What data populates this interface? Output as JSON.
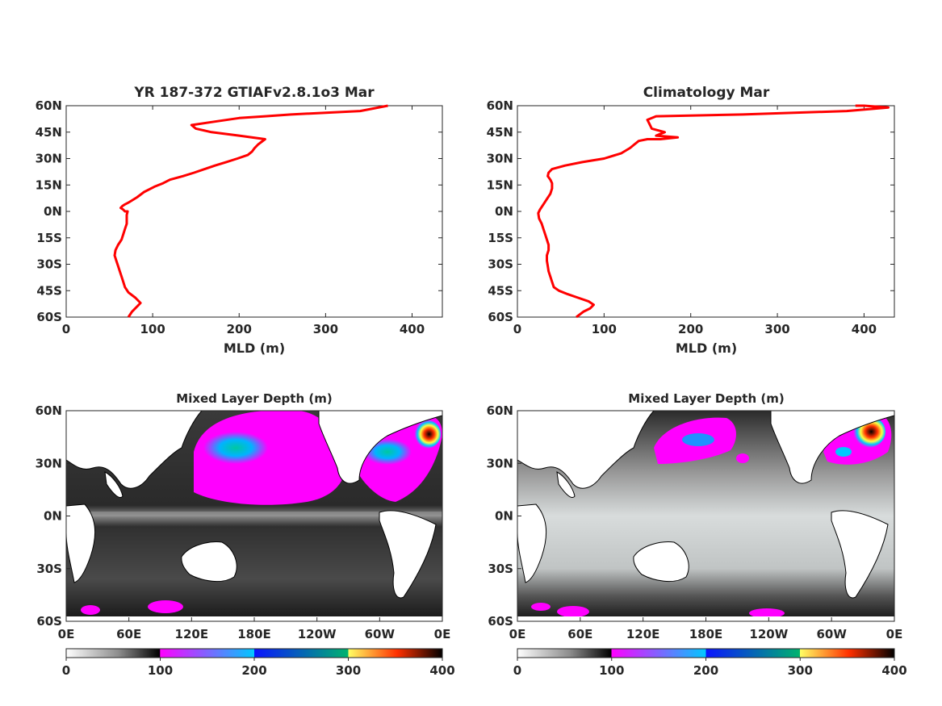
{
  "chart_data": [
    {
      "type": "line",
      "title": "YR 187-372 GTIAFv2.8.1o3 Mar",
      "xlabel": "MLD (m)",
      "ylabel": "",
      "xlim": [
        0,
        435
      ],
      "ylim": [
        -60,
        60
      ],
      "xticks": [
        "0",
        "100",
        "200",
        "300",
        "400"
      ],
      "yticks": [
        "60N",
        "45N",
        "30N",
        "15N",
        "0N",
        "15S",
        "30S",
        "45S",
        "60S"
      ],
      "grid": false,
      "color": "#ff0000",
      "series": [
        {
          "x": [
            72,
            76,
            82,
            86,
            80,
            72,
            68,
            66,
            64,
            62,
            60,
            58,
            56,
            57,
            60,
            64,
            66,
            68,
            70,
            70,
            70,
            71,
            68,
            66,
            63,
            65,
            68,
            72,
            82,
            90,
            102,
            112,
            120,
            135,
            148,
            160,
            172,
            185,
            198,
            210,
            215,
            218,
            222,
            230,
            200,
            168,
            150,
            145,
            172,
            200,
            230,
            260,
            300,
            340,
            372
          ],
          "y": [
            -60,
            -57,
            -54,
            -52,
            -49,
            -46,
            -43,
            -40,
            -37,
            -34,
            -31,
            -28,
            -25,
            -22,
            -19,
            -16,
            -13,
            -10,
            -7,
            -4,
            -2,
            0,
            0,
            1,
            2,
            3,
            4,
            5,
            8,
            11,
            14,
            16,
            18,
            20,
            22,
            24,
            26,
            28,
            30,
            32,
            34,
            36,
            38,
            41,
            43,
            45,
            47,
            49,
            51,
            53,
            54,
            55,
            56,
            57,
            60
          ]
        }
      ]
    },
    {
      "type": "line",
      "title": "Climatology Mar",
      "xlabel": "MLD (m)",
      "ylabel": "",
      "xlim": [
        0,
        435
      ],
      "ylim": [
        -60,
        60
      ],
      "xticks": [
        "0",
        "100",
        "200",
        "300",
        "400"
      ],
      "yticks": [
        "60N",
        "45N",
        "30N",
        "15N",
        "0N",
        "15S",
        "30S",
        "45S",
        "60S"
      ],
      "grid": false,
      "color": "#ff0000",
      "series": [
        {
          "x": [
            68,
            76,
            84,
            88,
            82,
            70,
            58,
            48,
            42,
            40,
            38,
            36,
            35,
            34,
            34,
            36,
            36,
            34,
            32,
            30,
            28,
            25,
            24,
            26,
            30,
            34,
            38,
            40,
            40,
            38,
            35,
            36,
            40,
            55,
            75,
            100,
            120,
            130,
            135,
            140,
            150,
            165,
            185,
            160,
            170,
            155,
            152,
            150,
            160,
            260,
            380,
            428,
            400,
            390
          ],
          "y": [
            -60,
            -57,
            -55,
            -53,
            -51,
            -49,
            -47,
            -45,
            -43,
            -40,
            -37,
            -34,
            -31,
            -28,
            -25,
            -22,
            -19,
            -16,
            -13,
            -10,
            -7,
            -4,
            -1,
            1,
            4,
            7,
            10,
            13,
            16,
            18,
            20,
            22,
            24,
            26,
            28,
            30,
            33,
            36,
            38,
            40,
            41,
            41,
            42,
            43,
            45,
            47,
            50,
            52,
            54,
            55,
            57,
            59,
            60,
            60
          ]
        }
      ]
    },
    {
      "type": "heatmap",
      "title": "Mixed Layer Depth (m)",
      "xticks": [
        "0E",
        "60E",
        "120E",
        "180E",
        "120W",
        "60W",
        "0E"
      ],
      "yticks": [
        "60N",
        "30N",
        "0N",
        "30S",
        "60S"
      ],
      "colorbar_ticks": [
        "0",
        "100",
        "200",
        "300",
        "400"
      ],
      "colorbar_range": [
        0,
        400
      ],
      "colormap": [
        "#ffffff",
        "#4a4a4a",
        "#000000",
        "#ff00ff",
        "#00c8ff",
        "#0000c8",
        "#00b400",
        "#ffff00",
        "#ff2000",
        "#000000"
      ]
    },
    {
      "type": "heatmap",
      "title": "Mixed Layer Depth (m)",
      "xticks": [
        "0E",
        "60E",
        "120E",
        "180E",
        "120W",
        "60W",
        "0E"
      ],
      "yticks": [
        "60N",
        "30N",
        "0N",
        "30S",
        "60S"
      ],
      "colorbar_ticks": [
        "0",
        "100",
        "200",
        "300",
        "400"
      ],
      "colorbar_range": [
        0,
        400
      ],
      "colormap": [
        "#ffffff",
        "#4a4a4a",
        "#000000",
        "#ff00ff",
        "#00c8ff",
        "#0000c8",
        "#00b400",
        "#ffff00",
        "#ff2000",
        "#000000"
      ]
    }
  ]
}
